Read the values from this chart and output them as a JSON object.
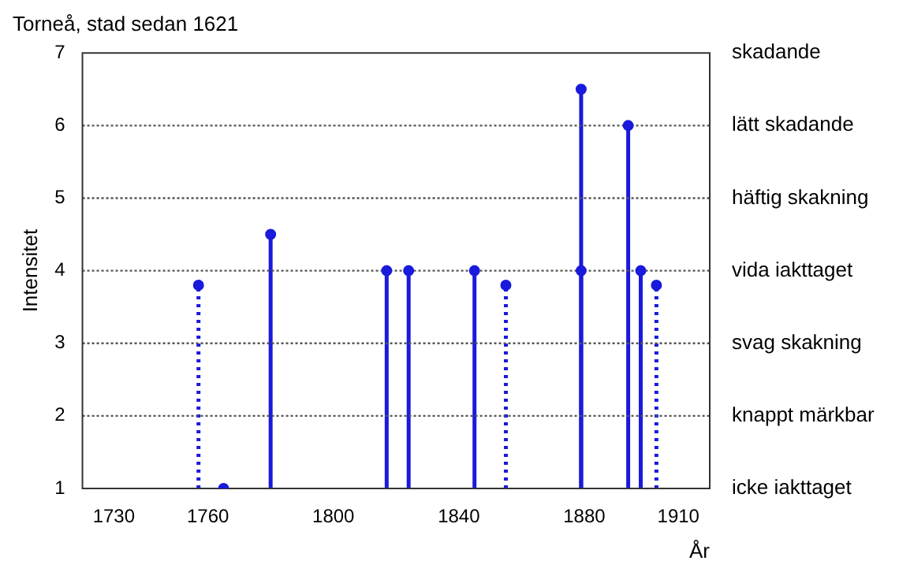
{
  "chart_data": {
    "type": "lollipop",
    "title": "Torneå, stad sedan 1621",
    "xlabel": "År",
    "ylabel": "Intensitet",
    "xlim": [
      1720,
      1920
    ],
    "xticks": [
      1730,
      1760,
      1800,
      1840,
      1880,
      1910
    ],
    "ylim": [
      1,
      7
    ],
    "yticks": [
      1,
      2,
      3,
      4,
      5,
      6,
      7
    ],
    "annotations": [
      "skadande",
      "lätt skadande",
      "häftig skakning",
      "vida iakttaget",
      "svag skakning",
      "knappt märkbar",
      "icke iakttaget"
    ],
    "grid": "y",
    "marker": "circle",
    "series": [
      {
        "color": "#1a1adc",
        "line_style": "solid",
        "x": [
          1765,
          1780,
          1817,
          1824,
          1845,
          1879,
          1879,
          1894,
          1898
        ],
        "values": [
          1,
          4.5,
          4,
          4,
          4,
          6.5,
          4,
          6,
          4
        ]
      },
      {
        "color": "#1a1adc",
        "line_style": "dotted",
        "x": [
          1757,
          1855,
          1903
        ],
        "values": [
          3.8,
          3.8,
          3.8
        ]
      }
    ]
  }
}
